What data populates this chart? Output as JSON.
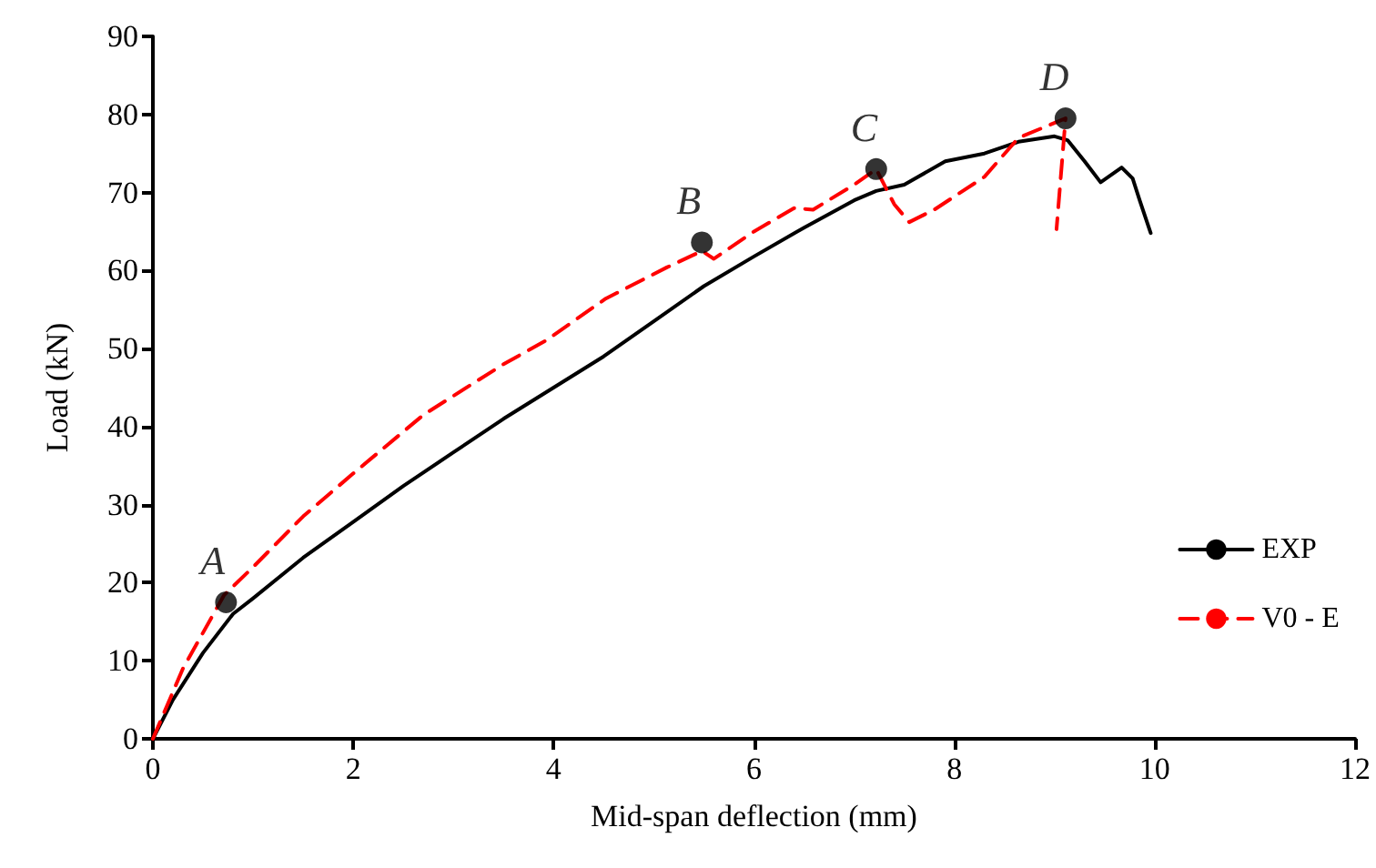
{
  "chart_data": {
    "type": "line",
    "xlabel": "Mid-span deflection (mm)",
    "ylabel": "Load (kN)",
    "xlim": [
      0,
      12
    ],
    "xticks": [
      0,
      2,
      4,
      6,
      8,
      10,
      12
    ],
    "ylim": [
      0,
      90
    ],
    "yticks": [
      0,
      10,
      20,
      30,
      40,
      50,
      60,
      70,
      80,
      90
    ],
    "grid": false,
    "legend": "bottom right",
    "marker": "none",
    "series": [
      {
        "name": "EXP",
        "color": "#000000",
        "line_style": "solid",
        "x": [
          0,
          0.2,
          0.5,
          0.8,
          1,
          1.5,
          2,
          2.5,
          3,
          3.5,
          4,
          4.5,
          5,
          5.5,
          6,
          6.5,
          7,
          7.22,
          7.5,
          7.91,
          8.3,
          8.64,
          9.0,
          9.13,
          9.3,
          9.46,
          9.67,
          9.78,
          9.85,
          9.96
        ],
        "values": [
          0,
          5,
          11,
          16,
          18,
          23.2,
          27.8,
          32.4,
          36.7,
          41,
          45,
          49,
          53.5,
          58,
          61.8,
          65.5,
          69,
          70.2,
          71,
          74,
          75,
          76.5,
          77.2,
          76.7,
          74,
          71.3,
          73.2,
          71.8,
          69,
          64.8
        ]
      },
      {
        "name": "V0 - E",
        "color": "#ff0000",
        "line_style": "dashed",
        "x": [
          0,
          0.3,
          0.71,
          1,
          1.5,
          2,
          2.7,
          3.5,
          3.92,
          4.52,
          5.13,
          5.48,
          5.6,
          6,
          6.4,
          6.59,
          7,
          7.22,
          7.4,
          7.55,
          7.8,
          8.3,
          8.64,
          9.11,
          9.02
        ],
        "values": [
          0,
          9,
          18.4,
          22,
          28.5,
          34,
          41.5,
          48,
          51,
          56.4,
          60.4,
          62.5,
          61.5,
          65,
          68,
          67.8,
          71,
          73,
          68.5,
          66.2,
          67.8,
          72,
          77,
          79.5,
          65.3
        ]
      },
      {
        "type": "scatter",
        "color": "#000000",
        "marker": "circle",
        "x": [
          0.73,
          5.48,
          7.22,
          9.11
        ],
        "values": [
          17.5,
          63.6,
          73,
          79.5
        ]
      }
    ],
    "annotations": [
      {
        "text": "A",
        "x": 0.73,
        "y": 17.5
      },
      {
        "text": "B",
        "x": 5.48,
        "y": 63.6
      },
      {
        "text": "C",
        "x": 7.22,
        "y": 73
      },
      {
        "text": "D",
        "x": 9.11,
        "y": 79.5
      }
    ]
  }
}
